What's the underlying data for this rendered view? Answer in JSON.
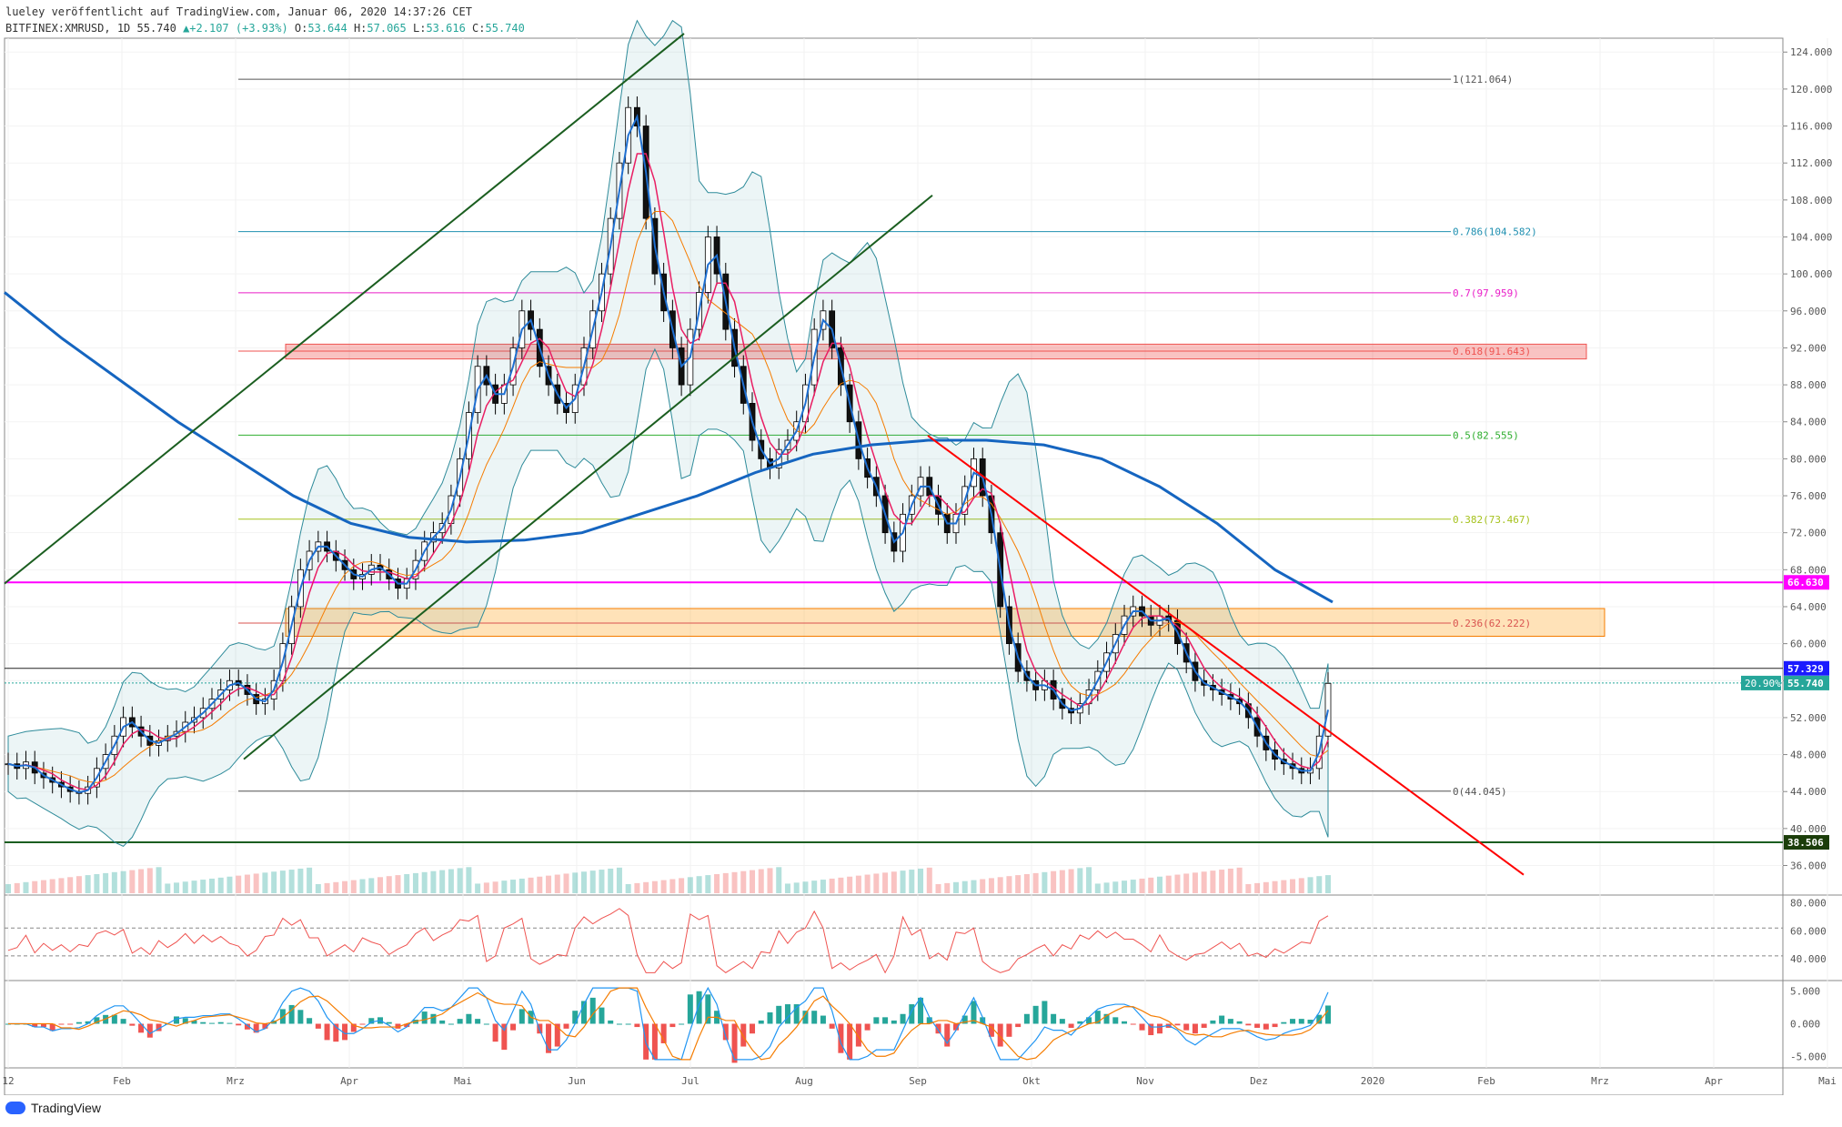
{
  "header": {
    "line1": "lueley veröffentlicht auf TradingView.com, Januar 06, 2020 14:37:26 CET",
    "symbol": "BITFINEX:XMRUSD, 1D 55.740",
    "change": "▲+2.107 (+3.93%)",
    "open_label": "O:",
    "open": "53.644",
    "high_label": "H:",
    "high": "57.065",
    "low_label": "L:",
    "low": "53.616",
    "close_label": "C:",
    "close": "55.740"
  },
  "footer": {
    "brand": "TradingView"
  },
  "colors": {
    "up": "#26a69a",
    "down": "#ef5350",
    "candle_up": "#ffffff",
    "candle_border": "#000000",
    "ma_blue": "#1e6fd0",
    "ema_red": "#e91e63",
    "ema_orange": "#f57c00",
    "ma200": "#1565c0",
    "bb": "#2e8b9a",
    "magenta": "#ff00ff",
    "trend_red": "#ff0000",
    "channel": "#1b5e20"
  },
  "chart_data": {
    "type": "candlestick",
    "symbol": "BITFINEX:XMRUSD",
    "interval": "1D",
    "x_axis_labels": [
      "12",
      "Feb",
      "Mrz",
      "Apr",
      "Mai",
      "Jun",
      "Jul",
      "Aug",
      "Sep",
      "Okt",
      "Nov",
      "Dez",
      "2020",
      "Feb",
      "Mrz",
      "Apr",
      "Mai"
    ],
    "x_axis_months": [
      0,
      1,
      2,
      3,
      4,
      5,
      6,
      7,
      8,
      9,
      10,
      11,
      12,
      13,
      14,
      15,
      16
    ],
    "y_axis": {
      "ylim": [
        33.0,
        125.5
      ],
      "ticks": [
        "124.000",
        "120.000",
        "116.000",
        "112.000",
        "108.000",
        "104.000",
        "100.000",
        "96.000",
        "92.000",
        "88.000",
        "84.000",
        "80.000",
        "76.000",
        "72.000",
        "68.000",
        "64.000",
        "60.000",
        "56.000",
        "52.000",
        "48.000",
        "44.000",
        "40.000",
        "36.000"
      ]
    },
    "fib_levels": [
      {
        "label": "1(121.064)",
        "value": 121.064,
        "color": "#555555"
      },
      {
        "label": "0.786(104.582)",
        "value": 104.582,
        "color": "#1f8fb0"
      },
      {
        "label": "0.7(97.959)",
        "value": 97.959,
        "color": "#e91ec8"
      },
      {
        "label": "0.618(91.643)",
        "value": 91.643,
        "color": "#ef5350"
      },
      {
        "label": "0.5(82.555)",
        "value": 82.555,
        "color": "#2fae2f"
      },
      {
        "label": "0.382(73.467)",
        "value": 73.467,
        "color": "#a6c21e"
      },
      {
        "label": "0.236(62.222)",
        "value": 62.222,
        "color": "#d9534f"
      },
      {
        "label": "0(44.045)",
        "value": 44.045,
        "color": "#555555"
      }
    ],
    "price_labels": [
      {
        "text": "66.630",
        "value": 66.63,
        "bg": "#ff00ff"
      },
      {
        "text": "57.329",
        "value": 57.329,
        "bg": "#1a1aff"
      },
      {
        "text": "55.740",
        "value": 55.74,
        "bg": "#26a69a"
      },
      {
        "text": "38.506",
        "value": 38.506,
        "bg": "#1b3d0a"
      }
    ],
    "pct_label": "20.90%",
    "closes": [
      47.0,
      46.5,
      47.2,
      46.0,
      45.5,
      45.0,
      44.5,
      44.0,
      43.8,
      44.5,
      46.5,
      48.0,
      50.0,
      52.0,
      51.0,
      50.0,
      49.0,
      49.5,
      50.0,
      50.5,
      51.5,
      52.0,
      53.0,
      54.0,
      55.0,
      56.0,
      55.5,
      54.5,
      53.5,
      54.0,
      56.0,
      60.0,
      64.0,
      68.0,
      70.0,
      71.0,
      70.0,
      69.0,
      68.0,
      67.0,
      67.5,
      68.5,
      68.0,
      67.0,
      66.0,
      67.0,
      69.0,
      71.0,
      72.0,
      73.0,
      76.0,
      80.0,
      85.0,
      90.0,
      88.0,
      86.0,
      88.0,
      92.0,
      96.0,
      94.0,
      90.0,
      88.0,
      86.0,
      85.0,
      88.0,
      92.0,
      96.0,
      100.0,
      106.0,
      112.0,
      118.0,
      116.0,
      106.0,
      100.0,
      96.0,
      92.0,
      88.0,
      94.0,
      98.0,
      104.0,
      100.0,
      94.0,
      90.0,
      86.0,
      82.0,
      80.0,
      79.0,
      81.0,
      82.0,
      84.0,
      88.0,
      94.0,
      96.0,
      92.0,
      88.0,
      84.0,
      80.0,
      78.0,
      76.0,
      72.0,
      70.0,
      74.0,
      76.0,
      78.0,
      76.0,
      74.0,
      72.0,
      74.0,
      77.0,
      80.0,
      76.0,
      72.0,
      64.0,
      60.0,
      57.0,
      56.0,
      55.0,
      56.0,
      54.0,
      53.0,
      52.5,
      53.5,
      55.0,
      57.0,
      59.0,
      61.0,
      63.0,
      64.0,
      63.0,
      62.0,
      63.0,
      62.5,
      60.0,
      58.0,
      56.0,
      55.5,
      55.0,
      54.5,
      54.0,
      53.5,
      52.0,
      50.0,
      48.5,
      47.5,
      47.0,
      46.5,
      46.0,
      46.5,
      50.0,
      55.7
    ],
    "ma200": [
      98.0,
      93.0,
      88.5,
      84.0,
      80.0,
      76.0,
      73.0,
      71.5,
      71.0,
      71.2,
      72.0,
      74.0,
      76.0,
      78.5,
      80.5,
      81.5,
      82.0,
      82.0,
      81.5,
      80.0,
      77.0,
      73.0,
      68.0,
      64.5
    ],
    "volume_peak_fraction": 0.55
  }
}
